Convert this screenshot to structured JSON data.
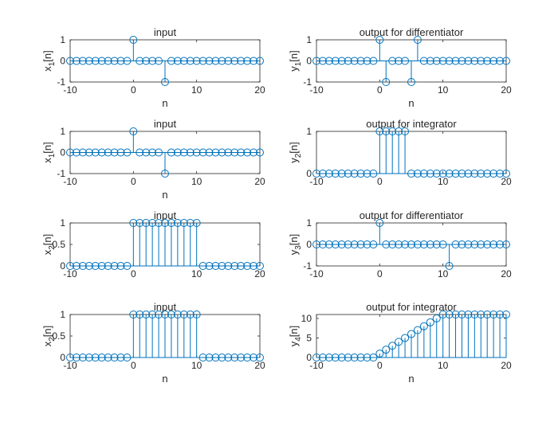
{
  "chart_data": [
    {
      "type": "stem",
      "title": "input",
      "xlabel": "n",
      "ylabel": "x",
      "ylabel_sub": "1",
      "ylabel_tail": "[n]",
      "xlim": [
        -10,
        20
      ],
      "ylim": [
        -1,
        1
      ],
      "xticks": [
        -10,
        0,
        10,
        20
      ],
      "yticks": [
        -1,
        0,
        1
      ],
      "x": [
        -10,
        -9,
        -8,
        -7,
        -6,
        -5,
        -4,
        -3,
        -2,
        -1,
        0,
        1,
        2,
        3,
        4,
        5,
        6,
        7,
        8,
        9,
        10,
        11,
        12,
        13,
        14,
        15,
        16,
        17,
        18,
        19,
        20
      ],
      "y": [
        0,
        0,
        0,
        0,
        0,
        0,
        0,
        0,
        0,
        0,
        1,
        0,
        0,
        0,
        0,
        -1,
        0,
        0,
        0,
        0,
        0,
        0,
        0,
        0,
        0,
        0,
        0,
        0,
        0,
        0,
        0
      ]
    },
    {
      "type": "stem",
      "title": "output for differentiator",
      "xlabel": "n",
      "ylabel": "y",
      "ylabel_sub": "1",
      "ylabel_tail": "[n]",
      "xlim": [
        -10,
        20
      ],
      "ylim": [
        -1,
        1
      ],
      "xticks": [
        -10,
        0,
        10,
        20
      ],
      "yticks": [
        -1,
        0,
        1
      ],
      "x": [
        -10,
        -9,
        -8,
        -7,
        -6,
        -5,
        -4,
        -3,
        -2,
        -1,
        0,
        1,
        2,
        3,
        4,
        5,
        6,
        7,
        8,
        9,
        10,
        11,
        12,
        13,
        14,
        15,
        16,
        17,
        18,
        19,
        20
      ],
      "y": [
        0,
        0,
        0,
        0,
        0,
        0,
        0,
        0,
        0,
        0,
        1,
        -1,
        0,
        0,
        0,
        -1,
        1,
        0,
        0,
        0,
        0,
        0,
        0,
        0,
        0,
        0,
        0,
        0,
        0,
        0,
        0
      ]
    },
    {
      "type": "stem",
      "title": "input",
      "xlabel": "n",
      "ylabel": "x",
      "ylabel_sub": "1",
      "ylabel_tail": "[n]",
      "xlim": [
        -10,
        20
      ],
      "ylim": [
        -1,
        1
      ],
      "xticks": [
        -10,
        0,
        10,
        20
      ],
      "yticks": [
        -1,
        0,
        1
      ],
      "x": [
        -10,
        -9,
        -8,
        -7,
        -6,
        -5,
        -4,
        -3,
        -2,
        -1,
        0,
        1,
        2,
        3,
        4,
        5,
        6,
        7,
        8,
        9,
        10,
        11,
        12,
        13,
        14,
        15,
        16,
        17,
        18,
        19,
        20
      ],
      "y": [
        0,
        0,
        0,
        0,
        0,
        0,
        0,
        0,
        0,
        0,
        1,
        0,
        0,
        0,
        0,
        -1,
        0,
        0,
        0,
        0,
        0,
        0,
        0,
        0,
        0,
        0,
        0,
        0,
        0,
        0,
        0
      ]
    },
    {
      "type": "stem",
      "title": "output for integrator",
      "xlabel": "",
      "ylabel": "y",
      "ylabel_sub": "2",
      "ylabel_tail": "[n]",
      "xlim": [
        -10,
        20
      ],
      "ylim": [
        0,
        1
      ],
      "xticks": [
        -10,
        0,
        10,
        20
      ],
      "yticks": [
        0,
        1
      ],
      "x": [
        -10,
        -9,
        -8,
        -7,
        -6,
        -5,
        -4,
        -3,
        -2,
        -1,
        0,
        1,
        2,
        3,
        4,
        5,
        6,
        7,
        8,
        9,
        10,
        11,
        12,
        13,
        14,
        15,
        16,
        17,
        18,
        19,
        20
      ],
      "y": [
        0,
        0,
        0,
        0,
        0,
        0,
        0,
        0,
        0,
        0,
        1,
        1,
        1,
        1,
        1,
        0,
        0,
        0,
        0,
        0,
        0,
        0,
        0,
        0,
        0,
        0,
        0,
        0,
        0,
        0,
        0
      ]
    },
    {
      "type": "stem",
      "title": "input",
      "xlabel": "",
      "ylabel": "x",
      "ylabel_sub": "2",
      "ylabel_tail": "[n]",
      "xlim": [
        -10,
        20
      ],
      "ylim": [
        0,
        1
      ],
      "xticks": [
        -10,
        0,
        10,
        20
      ],
      "yticks": [
        0,
        0.5,
        1
      ],
      "x": [
        -10,
        -9,
        -8,
        -7,
        -6,
        -5,
        -4,
        -3,
        -2,
        -1,
        0,
        1,
        2,
        3,
        4,
        5,
        6,
        7,
        8,
        9,
        10,
        11,
        12,
        13,
        14,
        15,
        16,
        17,
        18,
        19,
        20
      ],
      "y": [
        0,
        0,
        0,
        0,
        0,
        0,
        0,
        0,
        0,
        0,
        1,
        1,
        1,
        1,
        1,
        1,
        1,
        1,
        1,
        1,
        1,
        0,
        0,
        0,
        0,
        0,
        0,
        0,
        0,
        0,
        0
      ]
    },
    {
      "type": "stem",
      "title": "output for differentiator",
      "xlabel": "",
      "ylabel": "y",
      "ylabel_sub": "3",
      "ylabel_tail": "[n]",
      "xlim": [
        -10,
        20
      ],
      "ylim": [
        -1,
        1
      ],
      "xticks": [
        -10,
        0,
        10,
        20
      ],
      "yticks": [
        -1,
        0,
        1
      ],
      "x": [
        -10,
        -9,
        -8,
        -7,
        -6,
        -5,
        -4,
        -3,
        -2,
        -1,
        0,
        1,
        2,
        3,
        4,
        5,
        6,
        7,
        8,
        9,
        10,
        11,
        12,
        13,
        14,
        15,
        16,
        17,
        18,
        19,
        20
      ],
      "y": [
        0,
        0,
        0,
        0,
        0,
        0,
        0,
        0,
        0,
        0,
        1,
        0,
        0,
        0,
        0,
        0,
        0,
        0,
        0,
        0,
        0,
        -1,
        0,
        0,
        0,
        0,
        0,
        0,
        0,
        0,
        0
      ]
    },
    {
      "type": "stem",
      "title": "input",
      "xlabel": "n",
      "ylabel": "x",
      "ylabel_sub": "2",
      "ylabel_tail": "[n]",
      "xlim": [
        -10,
        20
      ],
      "ylim": [
        0,
        1
      ],
      "xticks": [
        -10,
        0,
        10,
        20
      ],
      "yticks": [
        0,
        0.5,
        1
      ],
      "x": [
        -10,
        -9,
        -8,
        -7,
        -6,
        -5,
        -4,
        -3,
        -2,
        -1,
        0,
        1,
        2,
        3,
        4,
        5,
        6,
        7,
        8,
        9,
        10,
        11,
        12,
        13,
        14,
        15,
        16,
        17,
        18,
        19,
        20
      ],
      "y": [
        0,
        0,
        0,
        0,
        0,
        0,
        0,
        0,
        0,
        0,
        1,
        1,
        1,
        1,
        1,
        1,
        1,
        1,
        1,
        1,
        1,
        0,
        0,
        0,
        0,
        0,
        0,
        0,
        0,
        0,
        0
      ]
    },
    {
      "type": "stem",
      "title": "output for integrator",
      "xlabel": "n",
      "ylabel": "y",
      "ylabel_sub": "4",
      "ylabel_tail": "[n]",
      "xlim": [
        -10,
        20
      ],
      "ylim": [
        0,
        11
      ],
      "xticks": [
        -10,
        0,
        10,
        20
      ],
      "yticks": [
        0,
        5,
        10
      ],
      "x": [
        -10,
        -9,
        -8,
        -7,
        -6,
        -5,
        -4,
        -3,
        -2,
        -1,
        0,
        1,
        2,
        3,
        4,
        5,
        6,
        7,
        8,
        9,
        10,
        11,
        12,
        13,
        14,
        15,
        16,
        17,
        18,
        19,
        20
      ],
      "y": [
        0,
        0,
        0,
        0,
        0,
        0,
        0,
        0,
        0,
        0,
        1,
        2,
        3,
        4,
        5,
        6,
        7,
        8,
        9,
        10,
        11,
        11,
        11,
        11,
        11,
        11,
        11,
        11,
        11,
        11,
        11
      ]
    }
  ],
  "style": {
    "stem_color": "#0072BD",
    "axis_color": "#262626",
    "background": "#ffffff"
  }
}
